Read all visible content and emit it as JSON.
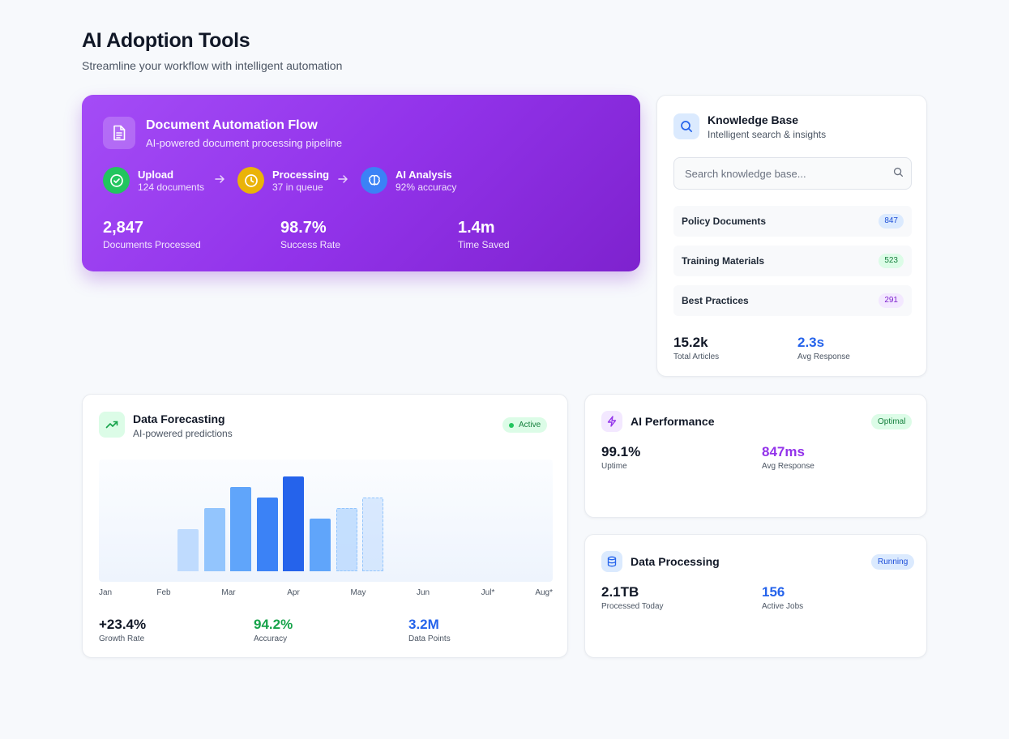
{
  "header": {
    "title": "AI Adoption Tools",
    "subtitle": "Streamline your workflow with intelligent automation"
  },
  "automation": {
    "icon": "document-icon",
    "title": "Document Automation Flow",
    "subtitle": "AI-powered document processing pipeline",
    "steps": [
      {
        "label": "Upload",
        "detail": "124 documents",
        "icon": "check-circle-icon",
        "color": "#22c55e"
      },
      {
        "label": "Processing",
        "detail": "37 in queue",
        "icon": "clock-icon",
        "color": "#eab308"
      },
      {
        "label": "AI Analysis",
        "detail": "92% accuracy",
        "icon": "brain-icon",
        "color": "#3b82f6"
      }
    ],
    "stats": [
      {
        "value": "2,847",
        "label": "Documents Processed"
      },
      {
        "value": "98.7%",
        "label": "Success Rate"
      },
      {
        "value": "1.4m",
        "label": "Time Saved"
      }
    ]
  },
  "knowledge": {
    "icon": "search-icon",
    "title": "Knowledge Base",
    "subtitle": "Intelligent search & insights",
    "search_placeholder": "Search knowledge base...",
    "categories": [
      {
        "label": "Policy Documents",
        "count": "847",
        "color": "#1d4ed8",
        "bg": "#dbeafe"
      },
      {
        "label": "Training Materials",
        "count": "523",
        "color": "#15803d",
        "bg": "#dcfce7"
      },
      {
        "label": "Best Practices",
        "count": "291",
        "color": "#7e22ce",
        "bg": "#f3e8ff"
      }
    ],
    "stats": [
      {
        "value": "15.2k",
        "label": "Total Articles",
        "color": "#111827"
      },
      {
        "value": "2.3s",
        "label": "Avg Response",
        "color": "#2563eb"
      }
    ]
  },
  "forecasting": {
    "icon": "trend-up-icon",
    "title": "Data Forecasting",
    "subtitle": "AI-powered predictions",
    "status": "Active",
    "chart_data": {
      "type": "bar",
      "categories": [
        "Jan",
        "Feb",
        "Mar",
        "Apr",
        "May",
        "Jun",
        "Jul*",
        "Aug*"
      ],
      "values": [
        40,
        60,
        80,
        70,
        90,
        50,
        60,
        70
      ],
      "forecast": [
        false,
        false,
        false,
        false,
        false,
        false,
        true,
        true
      ],
      "colors": [
        "#bfdbfe",
        "#93c5fd",
        "#60a5fa",
        "#3b82f6",
        "#2563eb",
        "#60a5fa",
        "#bfdbfe",
        "#dbeafe"
      ],
      "ylim": [
        0,
        100
      ],
      "title": "",
      "xlabel": "",
      "ylabel": ""
    },
    "stats": [
      {
        "value": "+23.4%",
        "label": "Growth Rate",
        "color": "#111827"
      },
      {
        "value": "94.2%",
        "label": "Accuracy",
        "color": "#16a34a"
      },
      {
        "value": "3.2M",
        "label": "Data Points",
        "color": "#2563eb"
      }
    ]
  },
  "performance": {
    "icon": "lightning-icon",
    "title": "AI Performance",
    "status": "Optimal",
    "stats": [
      {
        "value": "99.1%",
        "label": "Uptime",
        "color": "#111827"
      },
      {
        "value": "847ms",
        "label": "Avg Response",
        "color": "#9333ea"
      }
    ]
  },
  "processing": {
    "icon": "database-icon",
    "title": "Data Processing",
    "status": "Running",
    "stats": [
      {
        "value": "2.1TB",
        "label": "Processed Today",
        "color": "#111827"
      },
      {
        "value": "156",
        "label": "Active Jobs",
        "color": "#2563eb"
      }
    ]
  }
}
